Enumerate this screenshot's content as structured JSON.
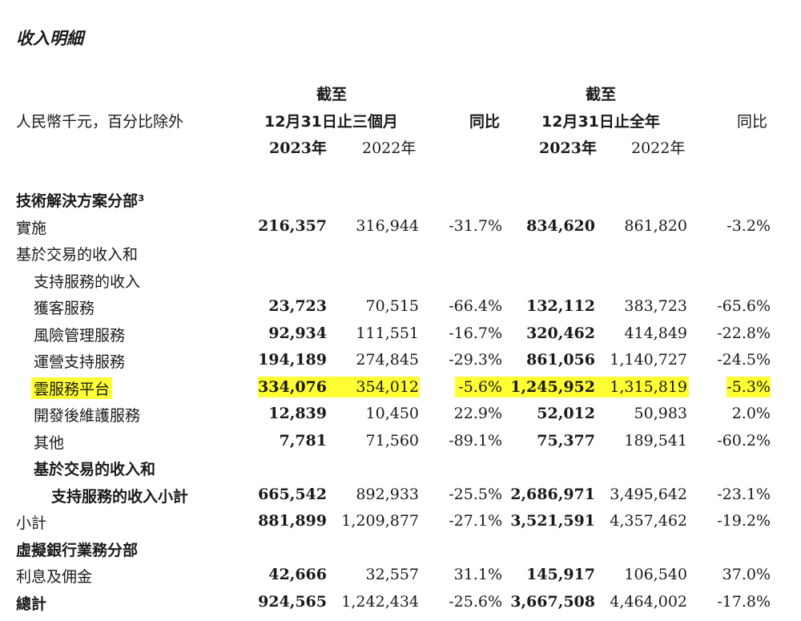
{
  "title": "收入明細",
  "header": {
    "unit_label": "人民幣千元，百分比除外",
    "group1_line1": "截至",
    "group1_line2": "12月31日止三個月",
    "group2_line1": "截至",
    "group2_line2": "12月31日止全年",
    "yoy": "同比",
    "yoy2": "同比",
    "y2023_a": "2023年",
    "y2022_a": "2022年",
    "y2023_b": "2023年",
    "y2022_b": "2022年"
  },
  "rows": [
    {
      "label": "技術解決方案分部³",
      "indent": 0,
      "bold": true,
      "values": []
    },
    {
      "label": "實施",
      "indent": 0,
      "bold": false,
      "values": [
        "216,357",
        "316,944",
        "-31.7%",
        "834,620",
        "861,820",
        "-3.2%"
      ]
    },
    {
      "label": "基於交易的收入和",
      "indent": 0,
      "bold": false,
      "values": []
    },
    {
      "label": "支持服務的收入",
      "indent": 1,
      "bold": false,
      "values": []
    },
    {
      "label": "獲客服務",
      "indent": 1,
      "bold": false,
      "values": [
        "23,723",
        "70,515",
        "-66.4%",
        "132,112",
        "383,723",
        "-65.6%"
      ]
    },
    {
      "label": "風險管理服務",
      "indent": 1,
      "bold": false,
      "values": [
        "92,934",
        "111,551",
        "-16.7%",
        "320,462",
        "414,849",
        "-22.8%"
      ]
    },
    {
      "label": "運營支持服務",
      "indent": 1,
      "bold": false,
      "values": [
        "194,189",
        "274,845",
        "-29.3%",
        "861,056",
        "1,140,727",
        "-24.5%"
      ]
    },
    {
      "label": "雲服務平台",
      "indent": 1,
      "bold": false,
      "highlight": true,
      "values": [
        "334,076",
        "354,012",
        "-5.6%",
        "1,245,952",
        "1,315,819",
        "-5.3%"
      ]
    },
    {
      "label": "開發後維護服務",
      "indent": 1,
      "bold": false,
      "values": [
        "12,839",
        "10,450",
        "22.9%",
        "52,012",
        "50,983",
        "2.0%"
      ]
    },
    {
      "label": "其他",
      "indent": 1,
      "bold": false,
      "values": [
        "7,781",
        "71,560",
        "-89.1%",
        "75,377",
        "189,541",
        "-60.2%"
      ]
    },
    {
      "label": "基於交易的收入和",
      "indent": 1,
      "bold": true,
      "values": []
    },
    {
      "label": "支持服務的收入小計",
      "indent": 2,
      "bold": true,
      "values": [
        "665,542",
        "892,933",
        "-25.5%",
        "2,686,971",
        "3,495,642",
        "-23.1%"
      ]
    },
    {
      "label": "小計",
      "indent": 0,
      "bold": false,
      "values": [
        "881,899",
        "1,209,877",
        "-27.1%",
        "3,521,591",
        "4,357,462",
        "-19.2%"
      ]
    },
    {
      "label": "虛擬銀行業務分部",
      "indent": 0,
      "bold": true,
      "values": []
    },
    {
      "label": "利息及佣金",
      "indent": 0,
      "bold": false,
      "values": [
        "42,666",
        "32,557",
        "31.1%",
        "145,917",
        "106,540",
        "37.0%"
      ]
    },
    {
      "label": "總計",
      "indent": 0,
      "bold": true,
      "values": [
        "924,565",
        "1,242,434",
        "-25.6%",
        "3,667,508",
        "4,464,002",
        "-17.8%"
      ]
    }
  ]
}
